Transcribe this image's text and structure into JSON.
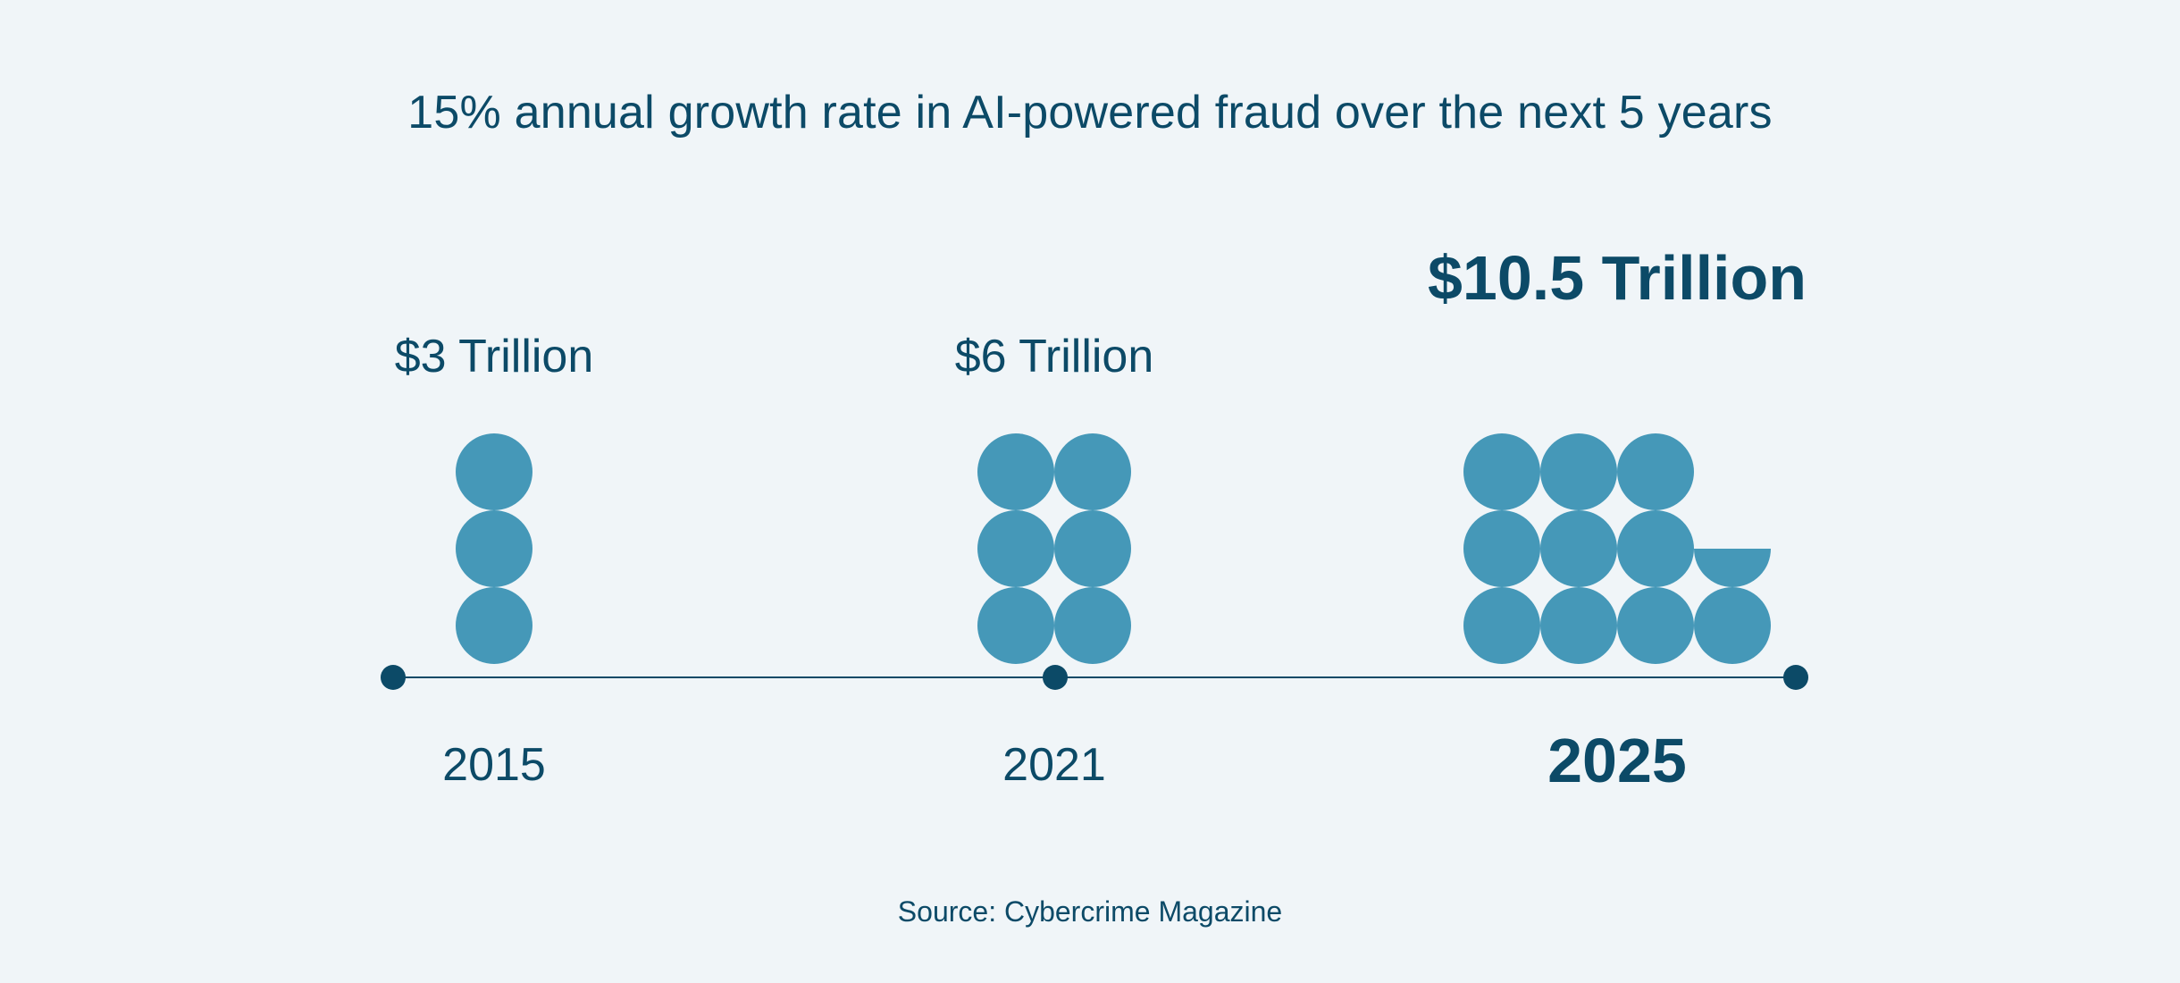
{
  "title": "15% annual growth rate in AI-powered fraud over the next 5 years",
  "source": "Source: Cybercrime Magazine",
  "colors": {
    "background": "#f0f5f8",
    "text": "#0c4a67",
    "coin": "#4598b8",
    "axis": "#0c4a67"
  },
  "chart_data": {
    "type": "pictograph",
    "title": "15% annual growth rate in AI-powered fraud over the next 5 years",
    "unit": "Trillion USD",
    "unit_per_icon": 1,
    "categories": [
      "2015",
      "2021",
      "2025"
    ],
    "values": [
      3,
      6,
      10.5
    ],
    "value_labels": [
      "$3 Trillion",
      "$6 Trillion",
      "$10.5 Trillion"
    ],
    "highlighted_category": "2025",
    "source": "Source: Cybercrime Magazine"
  }
}
